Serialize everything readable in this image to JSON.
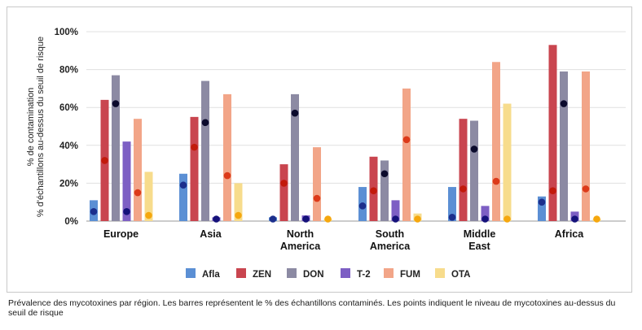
{
  "caption": "Prévalence des mycotoxines par région. Les barres représentent le % des échantillons contaminés. Les points indiquent le niveau de mycotoxines au-dessus du seuil de risque",
  "chart_data": {
    "type": "bar",
    "title": "",
    "ylabel_lines": [
      "% de contamination",
      "% d'échantillons au-dessus du seuil de risque"
    ],
    "ylim": [
      0,
      100
    ],
    "yticks": [
      "0%",
      "20%",
      "40%",
      "60%",
      "80%",
      "100%"
    ],
    "grid": true,
    "legend_position": "bottom",
    "categories": [
      "Europe",
      "Asia",
      "North America",
      "South America",
      "Middle East",
      "Africa"
    ],
    "category_labels": [
      [
        "Europe"
      ],
      [
        "Asia"
      ],
      [
        "North",
        "America"
      ],
      [
        "South",
        "America"
      ],
      [
        "Middle",
        "East"
      ],
      [
        "Africa"
      ]
    ],
    "series": [
      {
        "name": "Afla",
        "color": "#5b8fd4",
        "dot_color": "#1c2f8c",
        "values": [
          11,
          25,
          2,
          18,
          18,
          13
        ],
        "points": [
          5,
          19,
          1,
          8,
          2,
          10
        ]
      },
      {
        "name": "ZEN",
        "color": "#c9454f",
        "dot_color": "#c21a0c",
        "values": [
          64,
          55,
          30,
          34,
          54,
          93
        ],
        "points": [
          32,
          39,
          20,
          16,
          17,
          16
        ]
      },
      {
        "name": "DON",
        "color": "#8c8aa3",
        "dot_color": "#0b0a2c",
        "values": [
          77,
          74,
          67,
          32,
          53,
          79
        ],
        "points": [
          62,
          52,
          57,
          25,
          38,
          62
        ]
      },
      {
        "name": "T-2",
        "color": "#7d5fc4",
        "dot_color": "#15127a",
        "values": [
          42,
          2,
          3,
          11,
          8,
          5
        ],
        "points": [
          5,
          1,
          1,
          1,
          1,
          1
        ]
      },
      {
        "name": "FUM",
        "color": "#f2a588",
        "dot_color": "#dc3a1a",
        "values": [
          54,
          67,
          39,
          70,
          84,
          79
        ],
        "points": [
          15,
          24,
          12,
          43,
          21,
          17
        ]
      },
      {
        "name": "OTA",
        "color": "#f7dc8c",
        "dot_color": "#f5a70e",
        "values": [
          26,
          20,
          1,
          4,
          62,
          1
        ],
        "points": [
          3,
          3,
          1,
          1,
          1,
          1
        ]
      }
    ]
  }
}
